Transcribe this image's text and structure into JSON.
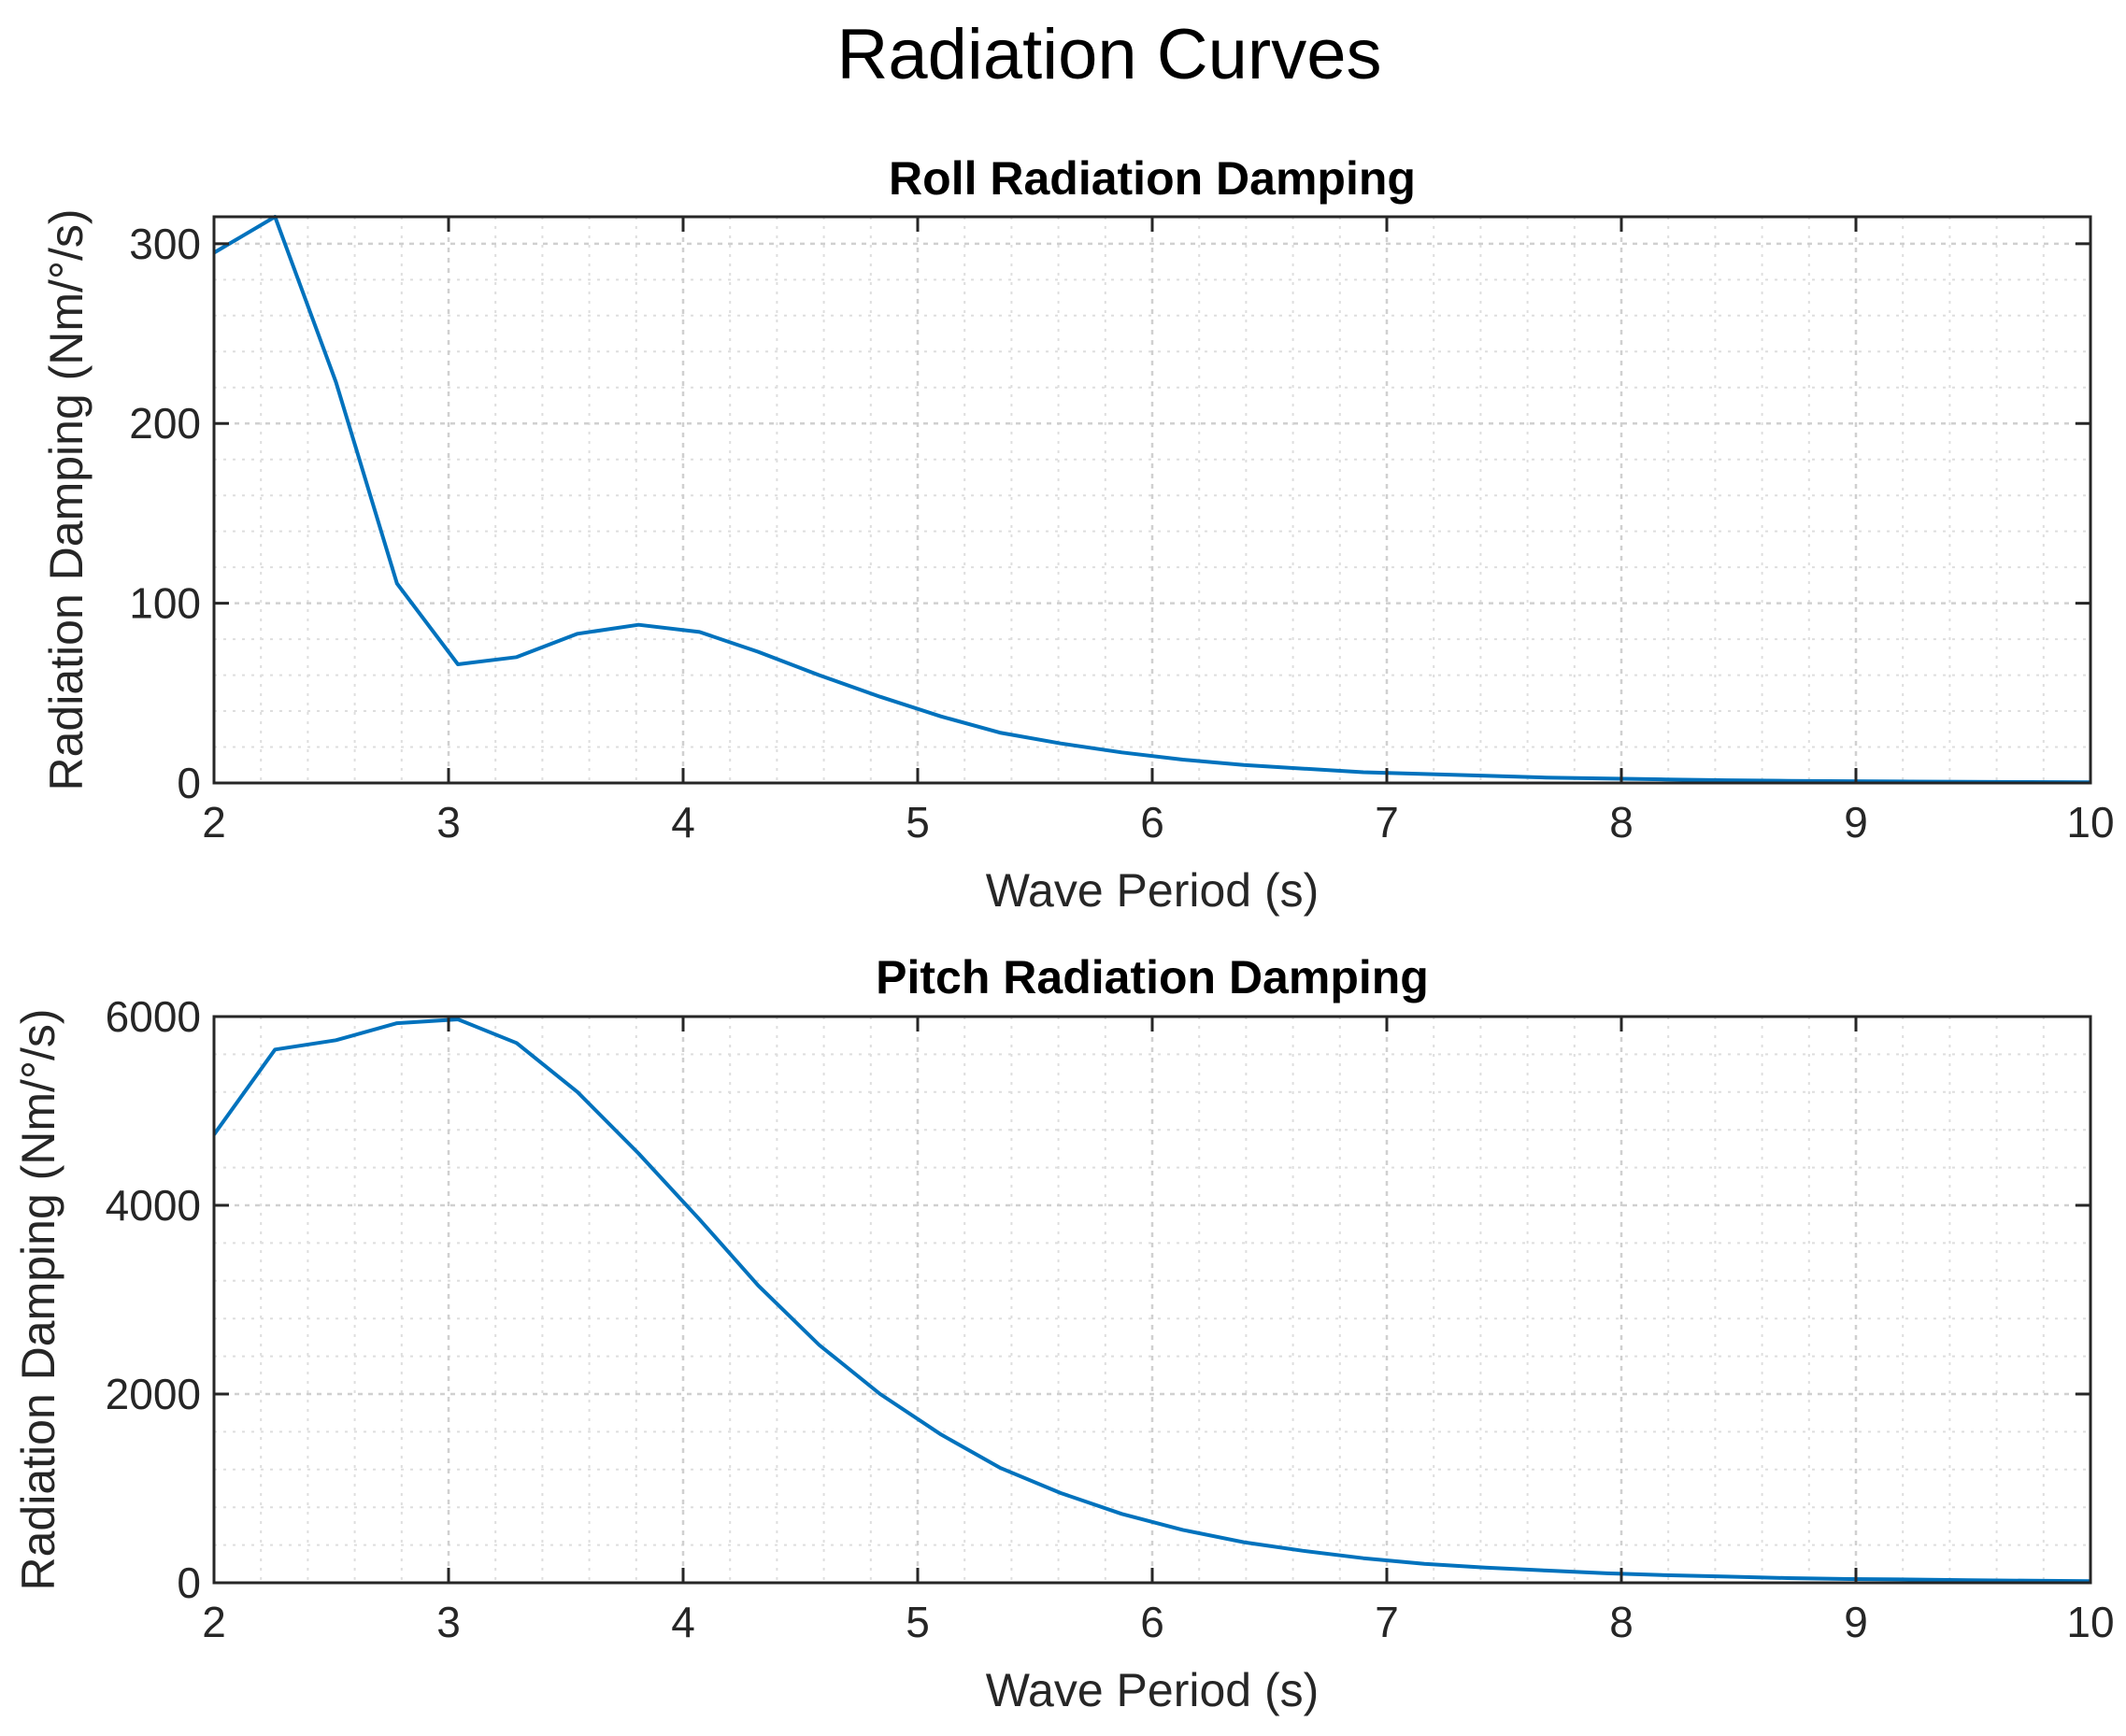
{
  "figure": {
    "title": "Radiation Curves"
  },
  "colors": {
    "series": "#0072bd",
    "axes": "#262626",
    "grid": "#d0d0d0",
    "minor_grid": "#dedede"
  },
  "chart_data": [
    {
      "type": "line",
      "title": "Roll Radiation Damping",
      "xlabel": "Wave Period (s)",
      "ylabel": "Radiation Damping (Nm/°/s)",
      "xlim": [
        2,
        10
      ],
      "ylim": [
        0,
        315
      ],
      "xticks": [
        2,
        3,
        4,
        5,
        6,
        7,
        8,
        9,
        10
      ],
      "yticks": [
        0,
        100,
        200,
        300
      ],
      "grid": true,
      "minor_grid": true,
      "series": [
        {
          "x": [
            2.0,
            2.26,
            2.52,
            2.78,
            3.04,
            3.29,
            3.55,
            3.81,
            4.07,
            4.32,
            4.58,
            4.84,
            5.1,
            5.35,
            5.61,
            5.87,
            6.13,
            6.39,
            6.64,
            6.9,
            7.16,
            7.42,
            7.68,
            7.94,
            8.19,
            8.45,
            8.71,
            8.97,
            9.23,
            9.48,
            9.74,
            10.0
          ],
          "y": [
            295,
            315,
            223,
            111,
            66,
            70,
            83,
            88,
            84,
            73,
            60,
            48,
            37,
            28,
            22,
            17,
            13,
            10,
            8,
            6,
            5,
            4,
            3,
            2.5,
            2,
            1.5,
            1.2,
            1,
            0.8,
            0.6,
            0.5,
            0.4
          ]
        }
      ]
    },
    {
      "type": "line",
      "title": "Pitch Radiation Damping",
      "xlabel": "Wave Period (s)",
      "ylabel": "Radiation Damping (Nm/°/s)",
      "xlim": [
        2,
        10
      ],
      "ylim": [
        0,
        6000
      ],
      "xticks": [
        2,
        3,
        4,
        5,
        6,
        7,
        8,
        9,
        10
      ],
      "yticks": [
        0,
        2000,
        4000,
        6000
      ],
      "grid": true,
      "minor_grid": true,
      "series": [
        {
          "x": [
            2.0,
            2.26,
            2.52,
            2.78,
            3.04,
            3.29,
            3.55,
            3.81,
            4.07,
            4.32,
            4.58,
            4.84,
            5.1,
            5.35,
            5.61,
            5.87,
            6.13,
            6.39,
            6.64,
            6.9,
            7.16,
            7.42,
            7.68,
            7.94,
            8.19,
            8.45,
            8.71,
            8.97,
            9.23,
            9.48,
            9.74,
            10.0
          ],
          "y": [
            4750,
            5650,
            5750,
            5930,
            5970,
            5720,
            5200,
            4550,
            3850,
            3150,
            2520,
            2000,
            1570,
            1220,
            950,
            730,
            560,
            430,
            340,
            260,
            200,
            160,
            130,
            100,
            80,
            65,
            50,
            40,
            35,
            28,
            22,
            18
          ]
        }
      ]
    }
  ]
}
